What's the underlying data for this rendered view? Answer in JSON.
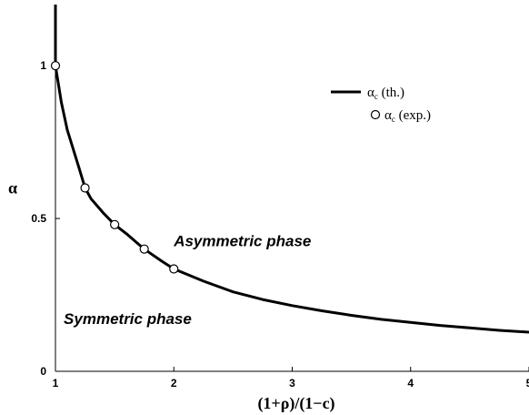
{
  "chart_data": {
    "type": "line",
    "xlabel": "(1+ρ)/(1−c)",
    "ylabel": "α",
    "xlim": [
      1,
      5
    ],
    "ylim": [
      0,
      1.2
    ],
    "xticks": [
      1,
      2,
      3,
      4,
      5
    ],
    "xtick_labels": [
      "1",
      "2",
      "3",
      "4",
      "5"
    ],
    "yticks": [
      0,
      0.5,
      1
    ],
    "ytick_labels": [
      "0",
      "0.5",
      "1"
    ],
    "grid": false,
    "legend_position": "top-right",
    "legend": [
      {
        "symbol": "α",
        "subscript": "c",
        "suffix": " (th.)",
        "style": "line"
      },
      {
        "symbol": "α",
        "subscript": "c",
        "suffix": " (exp.)",
        "style": "open-circle"
      }
    ],
    "series": [
      {
        "name": "αc (th.)",
        "style": "line",
        "x": [
          1.0,
          1.05,
          1.1,
          1.2,
          1.25,
          1.3,
          1.4,
          1.5,
          1.6,
          1.75,
          1.9,
          2.0,
          2.25,
          2.5,
          2.75,
          3.0,
          3.25,
          3.5,
          3.75,
          4.0,
          4.25,
          4.5,
          4.75,
          5.0
        ],
        "y": [
          1.0,
          0.88,
          0.79,
          0.665,
          0.6,
          0.565,
          0.52,
          0.48,
          0.45,
          0.4,
          0.36,
          0.335,
          0.295,
          0.26,
          0.235,
          0.215,
          0.198,
          0.183,
          0.17,
          0.16,
          0.15,
          0.142,
          0.134,
          0.128
        ]
      },
      {
        "name": "αc (exp.)",
        "style": "marker-open-circle",
        "x": [
          1.0,
          1.25,
          1.5,
          1.75,
          2.0
        ],
        "y": [
          1.0,
          0.6,
          0.48,
          0.4,
          0.335
        ]
      }
    ],
    "vertical_segment": {
      "x": 1.0,
      "y_from": 1.0,
      "y_to": 1.2
    },
    "annotations": [
      {
        "text": "Asymmetric phase",
        "x": 2.58,
        "y": 0.41
      },
      {
        "text": "Symmetric phase",
        "x": 1.61,
        "y": 0.155
      }
    ]
  }
}
